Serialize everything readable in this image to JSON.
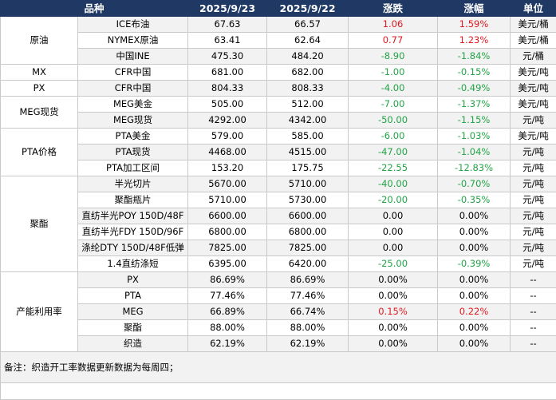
{
  "header": {
    "col_product": "品种",
    "col_date1": "2025/9/23",
    "col_date2": "2025/9/22",
    "col_change": "涨跌",
    "col_pct": "涨幅",
    "col_unit": "单位"
  },
  "groups": [
    {
      "name": "原油",
      "rows": [
        {
          "item": "ICE布油",
          "v1": "67.63",
          "v2": "66.57",
          "chg": "1.06",
          "pct": "1.59%",
          "unit": "美元/桶",
          "dir": "up"
        },
        {
          "item": "NYMEX原油",
          "v1": "63.41",
          "v2": "62.64",
          "chg": "0.77",
          "pct": "1.23%",
          "unit": "美元/桶",
          "dir": "up"
        },
        {
          "item": "中国INE",
          "v1": "475.30",
          "v2": "484.20",
          "chg": "-8.90",
          "pct": "-1.84%",
          "unit": "元/桶",
          "dir": "down"
        }
      ]
    },
    {
      "name": "MX",
      "rows": [
        {
          "item": "CFR中国",
          "v1": "681.00",
          "v2": "682.00",
          "chg": "-1.00",
          "pct": "-0.15%",
          "unit": "美元/吨",
          "dir": "down"
        }
      ]
    },
    {
      "name": "PX",
      "rows": [
        {
          "item": "CFR中国",
          "v1": "804.33",
          "v2": "808.33",
          "chg": "-4.00",
          "pct": "-0.49%",
          "unit": "美元/吨",
          "dir": "down"
        }
      ]
    },
    {
      "name": "MEG现货",
      "rows": [
        {
          "item": "MEG美金",
          "v1": "505.00",
          "v2": "512.00",
          "chg": "-7.00",
          "pct": "-1.37%",
          "unit": "美元/吨",
          "dir": "down"
        },
        {
          "item": "MEG现货",
          "v1": "4292.00",
          "v2": "4342.00",
          "chg": "-50.00",
          "pct": "-1.15%",
          "unit": "元/吨",
          "dir": "down"
        }
      ]
    },
    {
      "name": "PTA价格",
      "rows": [
        {
          "item": "PTA美金",
          "v1": "579.00",
          "v2": "585.00",
          "chg": "-6.00",
          "pct": "-1.03%",
          "unit": "美元/吨",
          "dir": "down"
        },
        {
          "item": "PTA现货",
          "v1": "4468.00",
          "v2": "4515.00",
          "chg": "-47.00",
          "pct": "-1.04%",
          "unit": "元/吨",
          "dir": "down"
        },
        {
          "item": "PTA加工区间",
          "v1": "153.20",
          "v2": "175.75",
          "chg": "-22.55",
          "pct": "-12.83%",
          "unit": "元/吨",
          "dir": "down"
        }
      ]
    },
    {
      "name": "聚酯",
      "rows": [
        {
          "item": "半光切片",
          "v1": "5670.00",
          "v2": "5710.00",
          "chg": "-40.00",
          "pct": "-0.70%",
          "unit": "元/吨",
          "dir": "down"
        },
        {
          "item": "聚酯瓶片",
          "v1": "5710.00",
          "v2": "5730.00",
          "chg": "-20.00",
          "pct": "-0.35%",
          "unit": "元/吨",
          "dir": "down"
        },
        {
          "item": "直纺半光POY 150D/48F",
          "v1": "6600.00",
          "v2": "6600.00",
          "chg": "0.00",
          "pct": "0.00%",
          "unit": "元/吨",
          "dir": "flat"
        },
        {
          "item": "直纺半光FDY 150D/96F",
          "v1": "6800.00",
          "v2": "6800.00",
          "chg": "0.00",
          "pct": "0.00%",
          "unit": "元/吨",
          "dir": "flat"
        },
        {
          "item": "涤纶DTY 150D/48F低弹",
          "v1": "7825.00",
          "v2": "7825.00",
          "chg": "0.00",
          "pct": "0.00%",
          "unit": "元/吨",
          "dir": "flat"
        },
        {
          "item": "1.4直纺涤短",
          "v1": "6395.00",
          "v2": "6420.00",
          "chg": "-25.00",
          "pct": "-0.39%",
          "unit": "元/吨",
          "dir": "down"
        }
      ]
    },
    {
      "name": "产能利用率",
      "rows": [
        {
          "item": "PX",
          "v1": "86.69%",
          "v2": "86.69%",
          "chg": "0.00%",
          "pct": "0.00%",
          "unit": "--",
          "dir": "flat"
        },
        {
          "item": "PTA",
          "v1": "77.46%",
          "v2": "77.46%",
          "chg": "0.00%",
          "pct": "0.00%",
          "unit": "--",
          "dir": "flat"
        },
        {
          "item": "MEG",
          "v1": "66.89%",
          "v2": "66.74%",
          "chg": "0.15%",
          "pct": "0.22%",
          "unit": "--",
          "dir": "up"
        },
        {
          "item": "聚酯",
          "v1": "88.00%",
          "v2": "88.00%",
          "chg": "0.00%",
          "pct": "0.00%",
          "unit": "--",
          "dir": "flat"
        },
        {
          "item": "织造",
          "v1": "62.19%",
          "v2": "62.19%",
          "chg": "0.00%",
          "pct": "0.00%",
          "unit": "--",
          "dir": "flat"
        }
      ]
    }
  ],
  "note": "备注：织造开工率数据更新数据为每周四；",
  "colors": {
    "header_bg": "#1f3864",
    "up": "#e0191f",
    "down": "#22a447",
    "alt_row": "#f2f2f2"
  }
}
